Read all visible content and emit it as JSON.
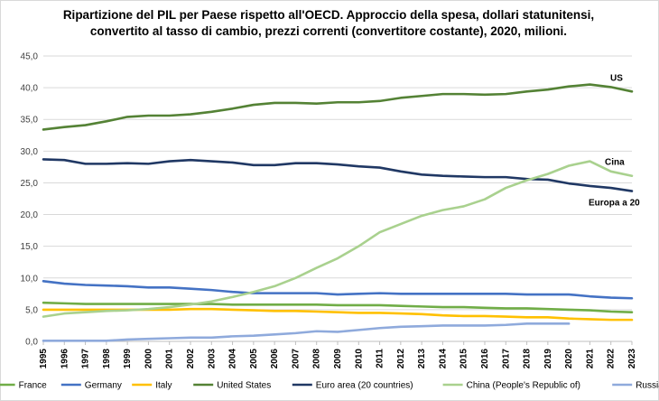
{
  "chart_data": {
    "type": "line",
    "title": [
      "Ripartizione del PIL per Paese rispetto all'OECD. Approccio della spesa, dollari statunitensi,",
      "convertito al tasso di cambio, prezzi correnti (convertitore costante), 2020, milioni."
    ],
    "xlabel": "",
    "ylabel": "",
    "ylim": [
      0,
      45
    ],
    "yticks": [
      "0,0",
      "5,0",
      "10,0",
      "15,0",
      "20,0",
      "25,0",
      "30,0",
      "35,0",
      "40,0",
      "45,0"
    ],
    "grid": true,
    "legend_position": "bottom",
    "x": [
      "1995",
      "1996",
      "1997",
      "1998",
      "1999",
      "2000",
      "2001",
      "2002",
      "2003",
      "2004",
      "2005",
      "2006",
      "2007",
      "2008",
      "2009",
      "2010",
      "2011",
      "2012",
      "2013",
      "2014",
      "2015",
      "2016",
      "2017",
      "2018",
      "2019",
      "2020",
      "2021",
      "2022",
      "2023"
    ],
    "series": [
      {
        "name": "France",
        "color": "#70ad47",
        "values": [
          6.1,
          6.0,
          5.9,
          5.9,
          5.9,
          5.9,
          5.9,
          5.9,
          5.9,
          5.8,
          5.8,
          5.8,
          5.8,
          5.8,
          5.7,
          5.7,
          5.7,
          5.6,
          5.5,
          5.4,
          5.4,
          5.3,
          5.2,
          5.2,
          5.1,
          5.0,
          4.9,
          4.7,
          4.6
        ]
      },
      {
        "name": "Germany",
        "color": "#4472c4",
        "values": [
          9.5,
          9.1,
          8.9,
          8.8,
          8.7,
          8.5,
          8.5,
          8.3,
          8.1,
          7.8,
          7.6,
          7.6,
          7.6,
          7.6,
          7.4,
          7.5,
          7.6,
          7.5,
          7.5,
          7.5,
          7.5,
          7.5,
          7.5,
          7.4,
          7.4,
          7.4,
          7.1,
          6.9,
          6.8
        ]
      },
      {
        "name": "Italy",
        "color": "#ffc000",
        "values": [
          5.0,
          5.0,
          5.0,
          5.0,
          5.0,
          5.0,
          5.0,
          5.1,
          5.1,
          5.0,
          4.9,
          4.8,
          4.8,
          4.7,
          4.6,
          4.5,
          4.5,
          4.4,
          4.3,
          4.1,
          4.0,
          4.0,
          3.9,
          3.8,
          3.8,
          3.6,
          3.5,
          3.4,
          3.4
        ]
      },
      {
        "name": "United States",
        "color": "#548235",
        "values": [
          33.4,
          33.8,
          34.1,
          34.7,
          35.4,
          35.6,
          35.6,
          35.8,
          36.2,
          36.7,
          37.3,
          37.6,
          37.6,
          37.5,
          37.7,
          37.7,
          37.9,
          38.4,
          38.7,
          39.0,
          39.0,
          38.9,
          39.0,
          39.4,
          39.7,
          40.2,
          40.5,
          40.1,
          39.4
        ]
      },
      {
        "name": "Euro area (20 countries)",
        "color": "#203864",
        "values": [
          28.7,
          28.6,
          28.0,
          28.0,
          28.1,
          28.0,
          28.4,
          28.6,
          28.4,
          28.2,
          27.8,
          27.8,
          28.1,
          28.1,
          27.9,
          27.6,
          27.4,
          26.8,
          26.3,
          26.1,
          26.0,
          25.9,
          25.9,
          25.6,
          25.5,
          24.9,
          24.5,
          24.2,
          23.7
        ]
      },
      {
        "name": "China (People's Republic of)",
        "color": "#a9d18e",
        "values": [
          3.9,
          4.4,
          4.6,
          4.8,
          4.9,
          5.1,
          5.4,
          5.8,
          6.3,
          7.0,
          7.8,
          8.7,
          10.0,
          11.6,
          13.1,
          15.0,
          17.2,
          18.5,
          19.8,
          20.7,
          21.3,
          22.4,
          24.2,
          25.4,
          26.4,
          27.7,
          28.4,
          26.8,
          26.1
        ]
      },
      {
        "name": "Russia",
        "color": "#8faadc",
        "values": [
          0.1,
          0.1,
          0.1,
          0.1,
          0.3,
          0.4,
          0.5,
          0.6,
          0.6,
          0.8,
          0.9,
          1.1,
          1.3,
          1.6,
          1.5,
          1.8,
          2.1,
          2.3,
          2.4,
          2.5,
          2.5,
          2.5,
          2.6,
          2.8,
          2.8,
          2.8,
          null,
          null,
          null
        ]
      }
    ],
    "annotations": [
      {
        "text": "US",
        "series": 3
      },
      {
        "text": "Cina",
        "series": 5
      },
      {
        "text": "Europa a 20",
        "series": 4
      }
    ]
  }
}
